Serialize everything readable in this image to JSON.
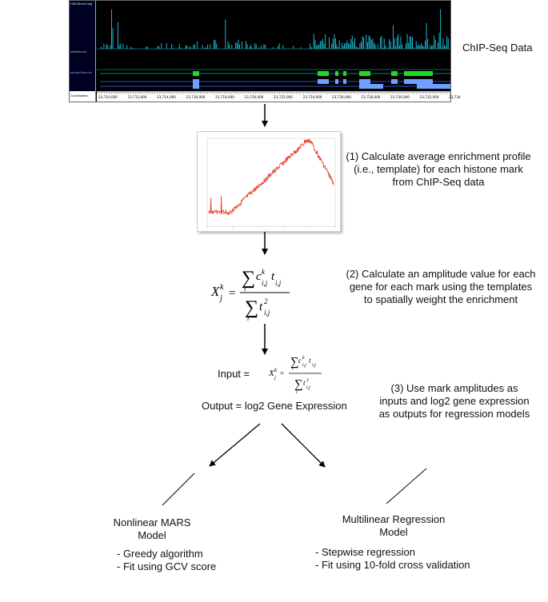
{
  "chipseq": {
    "label": "ChIP-Seq Data",
    "tracks": [
      "H3K36me3.wig",
      "refGene.txt",
      "knownGene.txt"
    ],
    "coordinates_label": "Coordinates",
    "coordinate_ticks": [
      "23,710,000",
      "23,712,000",
      "23,714,000",
      "23,716,000",
      "23,718,000",
      "23,720,000",
      "23,722,000",
      "23,724,000",
      "23,726,000",
      "23,728,000",
      "23,730,000",
      "23,732,000",
      "23,734"
    ]
  },
  "steps": {
    "step1": [
      "(1) Calculate average enrichment profile",
      "(i.e., template) for each histone mark",
      "from ChIP-Seq data"
    ],
    "step2": [
      "(2) Calculate an amplitude value for each",
      "gene for each mark using the templates",
      "to spatially weight the enrichment"
    ],
    "step3": [
      "(3) Use mark amplitudes as",
      "inputs and log2 gene expression",
      "as outputs for regression models"
    ]
  },
  "io": {
    "input_label": "Input =",
    "output_label": "Output = log2 Gene Expression"
  },
  "models": {
    "mars": {
      "title": [
        "Nonlinear MARS",
        "Model"
      ],
      "bullets": [
        "- Greedy algorithm",
        "- Fit using GCV score"
      ]
    },
    "mlr": {
      "title": [
        "Multilinear Regression",
        "Model"
      ],
      "bullets": [
        "- Stepwise regression",
        "- Fit using 10-fold cross validation"
      ]
    }
  },
  "colors": {
    "signal": "#1ec8e6",
    "gene": "#22d822",
    "known_gene": "#6fa0ff",
    "profile": "#e8402a"
  }
}
